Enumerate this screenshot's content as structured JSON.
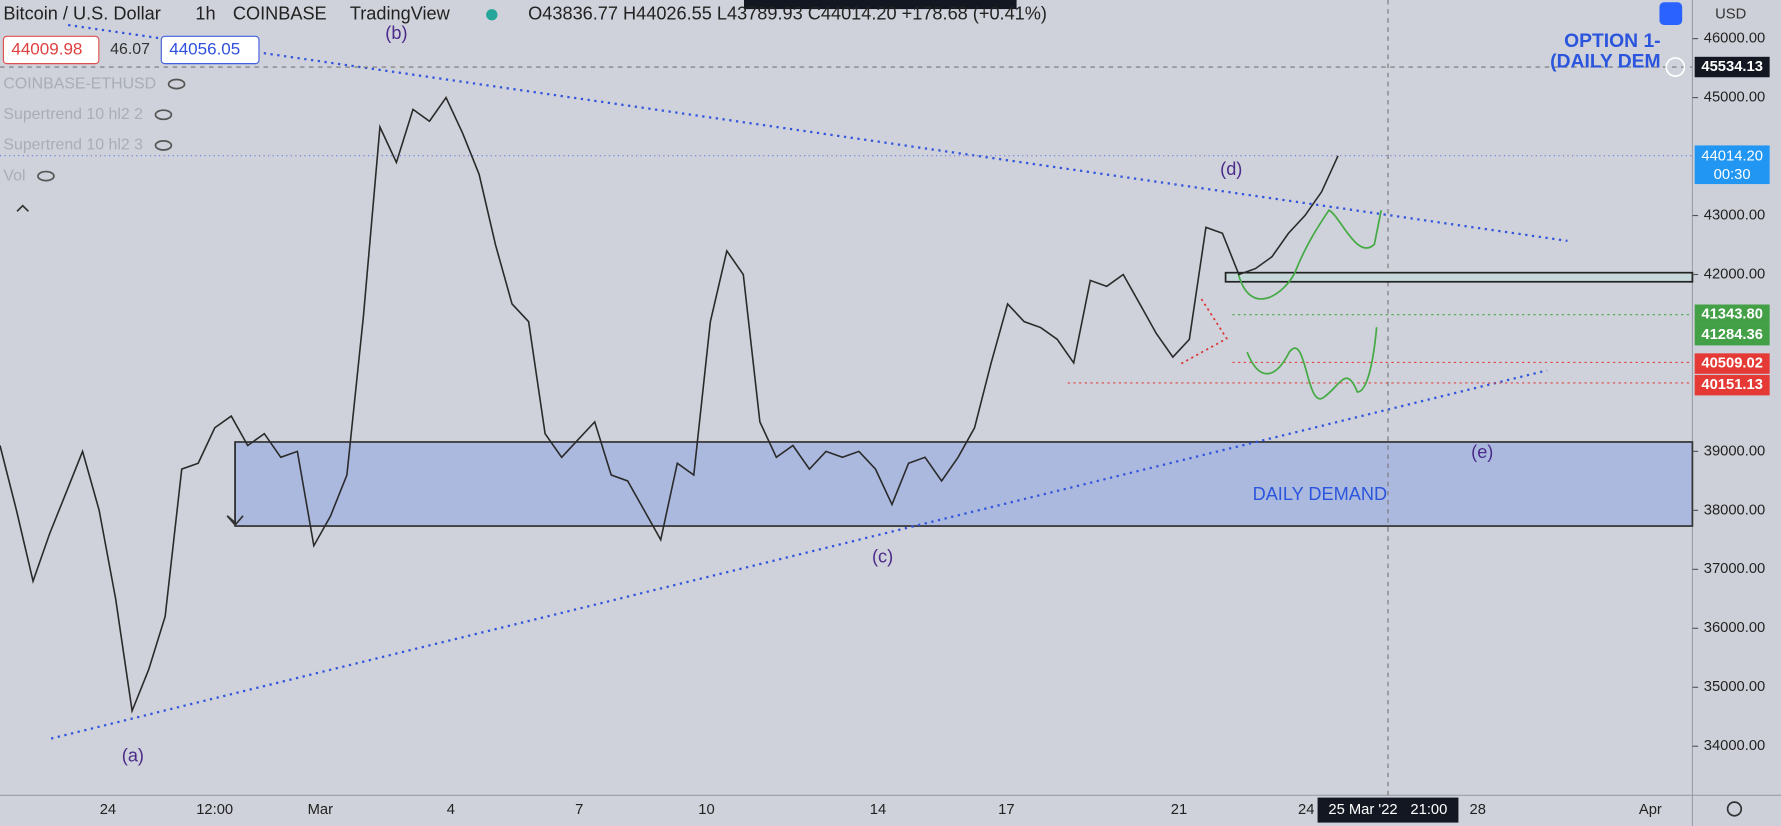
{
  "header": {
    "symbol": "Bitcoin / U.S. Dollar",
    "interval": "1h",
    "exchange": "COINBASE",
    "source": "TradingView",
    "ohlc": "O43836.77 H44026.55 L43789.93 C44014.20 +178.68 (+0.41%)"
  },
  "trade_buttons": {
    "sell": "44009.98",
    "spread": "46.07",
    "buy": "44056.05"
  },
  "indicators": [
    "COINBASE-ETHUSD",
    "Supertrend 10 hl2 2",
    "Supertrend 10 hl2 3",
    "Vol"
  ],
  "annotations": {
    "wave_a": "(a)",
    "wave_b": "(b)",
    "wave_c": "(c)",
    "wave_d": "(d)",
    "wave_e": "(e)",
    "option_line1": "OPTION 1-",
    "option_line2": "(DAILY DEM",
    "zone": "DAILY DEMAND"
  },
  "price_axis": {
    "currency": "USD",
    "ticks": [
      "46000.00",
      "45000.00",
      "43000.00",
      "42000.00",
      "39000.00",
      "38000.00",
      "37000.00",
      "36000.00",
      "35000.00",
      "34000.00"
    ]
  },
  "price_tags": {
    "crosshair": "45534.13",
    "last": "44014.20",
    "countdown": "00:30",
    "green_1": "41343.80",
    "green_2": "41284.36",
    "red_1": "40509.02",
    "red_2": "40151.13"
  },
  "time_axis": [
    "24",
    "12:00",
    "Mar",
    "4",
    "7",
    "10",
    "14",
    "17",
    "21",
    "24",
    "28",
    "Apr"
  ],
  "time_cursor": {
    "date": "25 Mar '22",
    "time": "21:00"
  },
  "price_series": {
    "values": [
      39100,
      38000,
      36800,
      37600,
      38300,
      39000,
      38000,
      36500,
      34600,
      35300,
      36200,
      38700,
      38800,
      39400,
      39600,
      39100,
      39300,
      38900,
      39000,
      37400,
      37900,
      38600,
      41300,
      44500,
      43900,
      44800,
      44600,
      45000,
      44400,
      43700,
      42500,
      41500,
      41200,
      39300,
      38900,
      39200,
      39500,
      38600,
      38500,
      38000,
      37500,
      38800,
      38600,
      41200,
      42400,
      42000,
      39500,
      38900,
      39100,
      38700,
      39000,
      38900,
      39000,
      38700,
      38100,
      38800,
      38900,
      38500,
      38900,
      39400,
      40500,
      41500,
      41200,
      41100,
      40900,
      40500,
      41900,
      41800,
      42000,
      41500,
      41000,
      40600,
      40900,
      42800,
      42700,
      42000,
      42100,
      42300,
      42700,
      43000,
      43400,
      44014.2
    ]
  }
}
